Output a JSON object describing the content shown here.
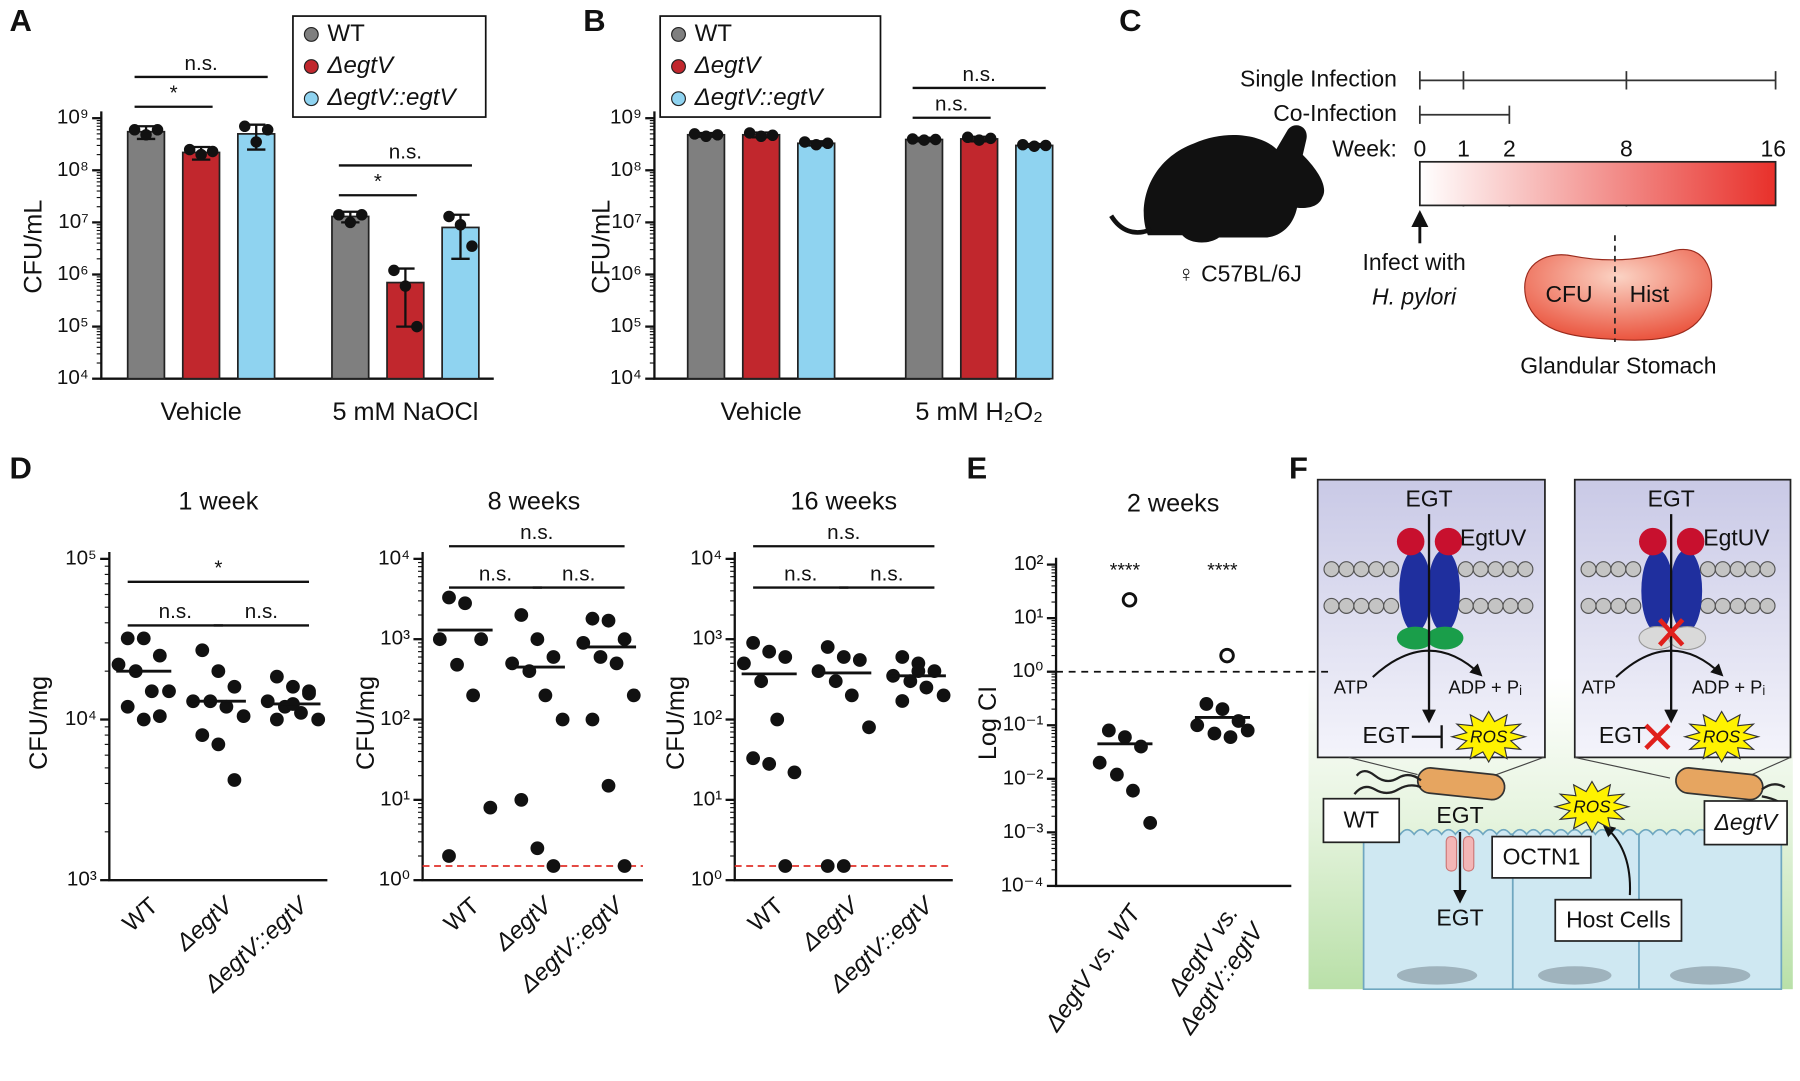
{
  "panel_labels": [
    "A",
    "B",
    "C",
    "D",
    "E",
    "F"
  ],
  "chart_data": [
    {
      "type": "bar",
      "log_scale": true,
      "ylabel": "CFU/mL",
      "legend": "upper right",
      "categories": [
        "Vehicle",
        "5 mM NaOCl"
      ],
      "ylim": [
        10000,
        1000000000
      ],
      "yticks": [
        {
          "value": 10000,
          "label": "10⁴"
        },
        {
          "value": 100000,
          "label": "10⁵"
        },
        {
          "value": 1000000,
          "label": "10⁶"
        },
        {
          "value": 10000000,
          "label": "10⁷"
        },
        {
          "value": 100000000,
          "label": "10⁸"
        },
        {
          "value": 1000000000,
          "label": "10⁹"
        }
      ],
      "series": [
        {
          "name": "WT",
          "color": "#7f7f7f",
          "values": [
            550000000,
            13000000
          ],
          "errors": [
            150000000,
            3000000
          ],
          "points": [
            [
              600000000,
              480000000,
              600000000
            ],
            [
              14000000,
              10000000,
              14000000
            ]
          ]
        },
        {
          "name": "ΔegtV",
          "color": "#c1272d",
          "values": [
            220000000,
            700000
          ],
          "errors": [
            60000000,
            600000
          ],
          "points": [
            [
              250000000,
              200000000,
              230000000
            ],
            [
              1200000,
              600000,
              100000
            ]
          ]
        },
        {
          "name": "ΔegtV::egtV",
          "color": "#8fd3f0",
          "values": [
            500000000,
            8000000
          ],
          "errors": [
            250000000,
            6000000
          ],
          "points": [
            [
              700000000,
              350000000,
              600000000
            ],
            [
              13000000,
              9000000,
              3500000
            ]
          ]
        }
      ],
      "comparisons": [
        {
          "category": 0,
          "pair": [
            0,
            1
          ],
          "label": "*"
        },
        {
          "category": 0,
          "pair": [
            0,
            2
          ],
          "label": "n.s."
        },
        {
          "category": 1,
          "pair": [
            0,
            1
          ],
          "label": "*"
        },
        {
          "category": 1,
          "pair": [
            0,
            2
          ],
          "label": "n.s."
        }
      ]
    },
    {
      "type": "bar",
      "log_scale": true,
      "ylabel": "CFU/mL",
      "legend": "upper left",
      "categories": [
        "Vehicle",
        "5 mM H₂O₂"
      ],
      "ylim": [
        10000,
        1000000000
      ],
      "yticks": [
        {
          "value": 10000,
          "label": "10⁴"
        },
        {
          "value": 100000,
          "label": "10⁵"
        },
        {
          "value": 1000000,
          "label": "10⁶"
        },
        {
          "value": 10000000,
          "label": "10⁷"
        },
        {
          "value": 100000000,
          "label": "10⁸"
        },
        {
          "value": 1000000000,
          "label": "10⁹"
        }
      ],
      "series": [
        {
          "name": "WT",
          "color": "#7f7f7f",
          "values": [
            480000000,
            390000000
          ],
          "errors": [
            40000000,
            30000000
          ],
          "points": [
            [
              500000000,
              450000000,
              480000000
            ],
            [
              400000000,
              380000000,
              390000000
            ]
          ]
        },
        {
          "name": "ΔegtV",
          "color": "#c1272d",
          "values": [
            480000000,
            400000000
          ],
          "errors": [
            50000000,
            40000000
          ],
          "points": [
            [
              520000000,
              450000000,
              470000000
            ],
            [
              430000000,
              380000000,
              410000000
            ]
          ]
        },
        {
          "name": "ΔegtV::egtV",
          "color": "#8fd3f0",
          "values": [
            330000000,
            300000000
          ],
          "errors": [
            30000000,
            20000000
          ],
          "points": [
            [
              350000000,
              310000000,
              330000000
            ],
            [
              310000000,
              290000000,
              300000000
            ]
          ]
        }
      ],
      "comparisons": [
        {
          "category": 1,
          "pair": [
            0,
            1
          ],
          "label": "n.s."
        },
        {
          "category": 1,
          "pair": [
            0,
            2
          ],
          "label": "n.s."
        }
      ]
    },
    {
      "type": "dotplot",
      "log_scale": true,
      "title": "1 week",
      "ylabel": "CFU/mg",
      "categories": [
        "WT",
        "ΔegtV",
        "ΔegtV::egtV"
      ],
      "ylim": [
        1000,
        100000
      ],
      "yticks": [
        {
          "value": 1000,
          "label": "10³"
        },
        {
          "value": 10000,
          "label": "10⁴"
        },
        {
          "value": 100000,
          "label": "10⁵"
        }
      ],
      "points": [
        [
          32000,
          32000,
          25000,
          22000,
          20000,
          15000,
          15000,
          12000,
          10000,
          10500
        ],
        [
          27000,
          20000,
          16000,
          13000,
          13000,
          12000,
          10500,
          8000,
          7000,
          4200
        ],
        [
          18500,
          16000,
          15000,
          13000,
          12000,
          11000,
          10000,
          10000,
          12500,
          14500
        ]
      ],
      "medians": [
        20000,
        13000,
        12500
      ],
      "comparisons": [
        {
          "pair": [
            0,
            1
          ],
          "label": "n.s."
        },
        {
          "pair": [
            1,
            2
          ],
          "label": "n.s."
        },
        {
          "pair": [
            0,
            2
          ],
          "label": "*"
        }
      ]
    },
    {
      "type": "dotplot",
      "log_scale": true,
      "title": "8 weeks",
      "ylabel": "CFU/mg",
      "categories": [
        "WT",
        "ΔegtV",
        "ΔegtV::egtV"
      ],
      "ylim": [
        1,
        10000
      ],
      "yticks": [
        {
          "value": 1,
          "label": "10⁰"
        },
        {
          "value": 10,
          "label": "10¹"
        },
        {
          "value": 100,
          "label": "10²"
        },
        {
          "value": 1000,
          "label": "10³"
        },
        {
          "value": 10000,
          "label": "10⁴"
        }
      ],
      "points": [
        [
          3300,
          2800,
          1000,
          1000,
          480,
          200,
          8,
          2
        ],
        [
          2000,
          1000,
          600,
          500,
          400,
          200,
          100,
          10,
          2.5,
          1.5
        ],
        [
          1800,
          1700,
          1000,
          900,
          600,
          500,
          200,
          100,
          15,
          1.5
        ]
      ],
      "medians": [
        1300,
        450,
        800
      ],
      "limit_of_detection": 1.5,
      "comparisons": [
        {
          "pair": [
            0,
            1
          ],
          "label": "n.s."
        },
        {
          "pair": [
            1,
            2
          ],
          "label": "n.s."
        },
        {
          "pair": [
            0,
            2
          ],
          "label": "n.s."
        }
      ]
    },
    {
      "type": "dotplot",
      "log_scale": true,
      "title": "16 weeks",
      "ylabel": "CFU/mg",
      "categories": [
        "WT",
        "ΔegtV",
        "ΔegtV::egtV"
      ],
      "ylim": [
        1,
        10000
      ],
      "yticks": [
        {
          "value": 1,
          "label": "10⁰"
        },
        {
          "value": 10,
          "label": "10¹"
        },
        {
          "value": 100,
          "label": "10²"
        },
        {
          "value": 1000,
          "label": "10³"
        },
        {
          "value": 10000,
          "label": "10⁴"
        }
      ],
      "points": [
        [
          900,
          700,
          600,
          500,
          300,
          100,
          22,
          33,
          28,
          1.5
        ],
        [
          800,
          600,
          550,
          400,
          300,
          200,
          80,
          1.5,
          1.5
        ],
        [
          600,
          500,
          400,
          350,
          300,
          250,
          200,
          170,
          400
        ]
      ],
      "medians": [
        370,
        380,
        350
      ],
      "limit_of_detection": 1.5,
      "comparisons": [
        {
          "pair": [
            0,
            1
          ],
          "label": "n.s."
        },
        {
          "pair": [
            1,
            2
          ],
          "label": "n.s."
        },
        {
          "pair": [
            0,
            2
          ],
          "label": "n.s."
        }
      ]
    },
    {
      "type": "dotplot",
      "log_scale": true,
      "title": "2 weeks",
      "ylabel": "Log CI",
      "categories": [
        [
          "ΔegtV vs. WT"
        ],
        [
          "ΔegtV vs.",
          "ΔegtV::egtV"
        ]
      ],
      "ylim": [
        0.0001,
        100
      ],
      "yticks": [
        {
          "value": 0.0001,
          "label": "10⁻⁴"
        },
        {
          "value": 0.001,
          "label": "10⁻³"
        },
        {
          "value": 0.01,
          "label": "10⁻²"
        },
        {
          "value": 0.1,
          "label": "10⁻¹"
        },
        {
          "value": 1,
          "label": "10⁰"
        },
        {
          "value": 10,
          "label": "10¹"
        },
        {
          "value": 100,
          "label": "10²"
        }
      ],
      "points": [
        [
          0.08,
          0.06,
          0.04,
          0.02,
          0.012,
          0.006,
          0.0015
        ],
        [
          0.25,
          0.2,
          0.12,
          0.1,
          0.07,
          0.06,
          0.08
        ]
      ],
      "outliers": [
        22,
        2
      ],
      "medians": [
        0.045,
        0.14
      ],
      "reference_line": 1,
      "annotations": [
        "****",
        "****"
      ]
    }
  ],
  "timeline": {
    "rows": [
      "Single Infection",
      "Co-Infection",
      "Week:"
    ],
    "weeks": [
      "0",
      "1",
      "2",
      "8",
      "16"
    ],
    "infect": [
      "Infect with",
      "H. pylori"
    ],
    "mouse": "♀ C57BL/6J",
    "stomach": [
      "CFU",
      "Hist"
    ],
    "stomach_label": "Glandular Stomach"
  },
  "model": {
    "inset_wt": {
      "egt": "EGT",
      "transporter": "EgtUV",
      "atp": "ATP",
      "adp": "ADP + Pᵢ",
      "egt_bottom": "EGT",
      "ros": "ROS"
    },
    "inset_mutant": {
      "egt": "EGT",
      "transporter": "EgtUV",
      "atp": "ATP",
      "adp": "ADP + Pᵢ",
      "egt_bottom": "EGT",
      "ros": "ROS"
    },
    "wt": "WT",
    "egt_in": "EGT",
    "channel": "OCTN1",
    "egt_out": "EGT",
    "host": "Host Cells",
    "ros": "ROS",
    "mutant": "ΔegtV"
  }
}
